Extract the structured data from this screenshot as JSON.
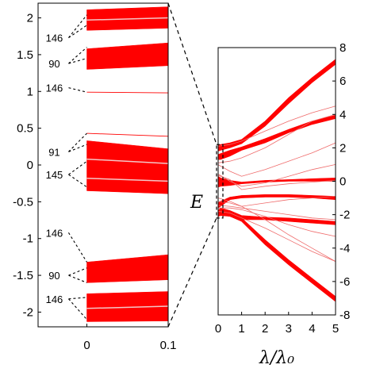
{
  "chart_data": [
    {
      "type": "line",
      "panel": "left",
      "xlim": [
        -0.06,
        0.1
      ],
      "ylim": [
        -2.2,
        2.2
      ],
      "x_ticks": [
        0,
        0.1
      ],
      "x_tick_labels": [
        "0",
        "0.1"
      ],
      "y_ticks": [
        2,
        1.5,
        1,
        0.5,
        0,
        -0.5,
        -1,
        -1.5,
        -2
      ],
      "y_tick_labels": [
        "2",
        "1.5",
        "1",
        "0.5",
        "0",
        "-0.5",
        "-1",
        "-1.5",
        "-2"
      ],
      "bands": [
        {
          "x": [
            0,
            0.1
          ],
          "ymin": [
            1.83,
            1.86
          ],
          "ymax": [
            2.11,
            2.15
          ]
        },
        {
          "x": [
            0,
            0.1
          ],
          "ymin": [
            1.3,
            1.35
          ],
          "ymax": [
            1.58,
            1.66
          ]
        },
        {
          "x": [
            0,
            0.1
          ],
          "ymin": [
            -0.35,
            -0.39
          ],
          "ymax": [
            0.33,
            0.22
          ]
        },
        {
          "x": [
            0,
            0.1
          ],
          "ymin": [
            -1.6,
            -1.56
          ],
          "ymax": [
            -1.32,
            -1.22
          ]
        },
        {
          "x": [
            0,
            0.1
          ],
          "ymin": [
            -2.13,
            -2.12
          ],
          "ymax": [
            -1.75,
            -1.72
          ]
        }
      ],
      "lines": [
        {
          "x": [
            0,
            0.1
          ],
          "y": [
            0.99,
            0.98
          ]
        },
        {
          "x": [
            0,
            0.1
          ],
          "y": [
            0.43,
            0.39
          ]
        }
      ],
      "gap_lines": [
        {
          "x": [
            0,
            0.1
          ],
          "y": [
            1.97,
            2.0
          ]
        },
        {
          "x": [
            0,
            0.1
          ],
          "y": [
            0.08,
            0.02
          ]
        },
        {
          "x": [
            0,
            0.1
          ],
          "y": [
            -0.18,
            -0.22
          ]
        },
        {
          "x": [
            0,
            0.1
          ],
          "y": [
            -1.95,
            -1.92
          ]
        }
      ],
      "annotations": [
        {
          "text": "146",
          "x": -0.042,
          "y": 1.73,
          "targets": [
            [
              0,
              2.04
            ],
            [
              0,
              1.9
            ]
          ]
        },
        {
          "text": "90",
          "x": -0.042,
          "y": 1.38,
          "targets": [
            [
              0,
              1.6
            ],
            [
              0,
              1.45
            ]
          ]
        },
        {
          "text": "146",
          "x": -0.042,
          "y": 1.05,
          "targets": [
            [
              0,
              0.99
            ]
          ]
        },
        {
          "text": "91",
          "x": -0.042,
          "y": 0.18,
          "targets": [
            [
              0,
              0.43
            ],
            [
              0,
              0.28
            ]
          ]
        },
        {
          "text": "145",
          "x": -0.042,
          "y": -0.13,
          "targets": [
            [
              0,
              0.05
            ],
            [
              0,
              -0.3
            ]
          ]
        },
        {
          "text": "146",
          "x": -0.042,
          "y": -0.92,
          "targets": [
            [
              0,
              -1.32
            ]
          ]
        },
        {
          "text": "90",
          "x": -0.042,
          "y": -1.5,
          "targets": [
            [
              0,
              -1.4
            ],
            [
              0,
              -1.6
            ]
          ]
        },
        {
          "text": "146",
          "x": -0.042,
          "y": -1.82,
          "targets": [
            [
              0,
              -1.8
            ],
            [
              0,
              -2.1
            ]
          ]
        }
      ]
    },
    {
      "type": "line",
      "panel": "right",
      "xlabel": "λ/λ₀",
      "ylabel": "E",
      "xlim": [
        0,
        5
      ],
      "ylim": [
        -8,
        8
      ],
      "x_ticks": [
        0,
        1,
        2,
        3,
        4,
        5
      ],
      "x_tick_labels": [
        "0",
        "1",
        "2",
        "3",
        "4",
        "5"
      ],
      "y_ticks": [
        8,
        6,
        4,
        2,
        0,
        -2,
        -4,
        -6,
        -8
      ],
      "y_tick_labels": [
        "8",
        "6",
        "4",
        "2",
        "0",
        "-2",
        "-4",
        "-6",
        "-8"
      ],
      "inset_box": {
        "x": [
          0,
          0.1
        ],
        "y": [
          -2.2,
          2.2
        ]
      },
      "fan_bands": [
        {
          "x": [
            0,
            0.1,
            0.5,
            1,
            2,
            3,
            4,
            5
          ],
          "ymin": [
            1.8,
            1.85,
            2.0,
            2.25,
            3.3,
            4.65,
            5.9,
            7.0
          ],
          "ymax": [
            2.15,
            2.2,
            2.3,
            2.5,
            3.6,
            5.0,
            6.2,
            7.3
          ]
        },
        {
          "x": [
            0,
            0.1,
            0.5,
            1,
            2,
            3,
            4,
            5
          ],
          "ymin": [
            1.3,
            1.3,
            1.5,
            1.85,
            2.3,
            2.9,
            3.4,
            3.75
          ],
          "ymax": [
            1.6,
            1.65,
            1.85,
            2.05,
            2.55,
            3.1,
            3.6,
            3.95
          ]
        },
        {
          "x": [
            0,
            0.1,
            0.5,
            1,
            2,
            3,
            4,
            5
          ],
          "ymin": [
            -0.35,
            -0.3,
            -0.25,
            -0.15,
            -0.05,
            0.0,
            0.0,
            0.0
          ],
          "ymax": [
            0.3,
            0.2,
            0.05,
            -0.05,
            0.05,
            0.1,
            0.15,
            0.2
          ]
        },
        {
          "x": [
            0,
            0.1,
            0.5,
            1,
            2,
            3,
            4,
            5
          ],
          "ymin": [
            -1.6,
            -1.5,
            -1.1,
            -1.0,
            -0.95,
            -0.95,
            -1.0,
            -1.1
          ],
          "ymax": [
            -1.3,
            -1.2,
            -0.95,
            -0.85,
            -0.8,
            -0.8,
            -0.85,
            -0.9
          ]
        },
        {
          "x": [
            0,
            0.1,
            0.5,
            1,
            2,
            3,
            4,
            5
          ],
          "ymin": [
            -2.13,
            -2.0,
            -2.1,
            -2.3,
            -2.3,
            -2.4,
            -2.5,
            -2.6
          ],
          "ymax": [
            -1.75,
            -1.6,
            -1.75,
            -2.05,
            -2.15,
            -2.2,
            -2.3,
            -2.4
          ]
        },
        {
          "x": [
            0,
            0.1,
            0.5,
            1,
            2,
            3,
            4,
            5
          ],
          "ymin": [
            -2.1,
            -2.05,
            -2.1,
            -2.4,
            -3.8,
            -5.0,
            -6.1,
            -7.2
          ],
          "ymax": [
            -1.9,
            -1.95,
            -1.95,
            -2.2,
            -3.5,
            -4.7,
            -5.8,
            -6.9
          ]
        }
      ],
      "thin_lines": [
        {
          "x": [
            0,
            0.5,
            1,
            2,
            3,
            4,
            5
          ],
          "y": [
            2.1,
            2.2,
            2.4,
            3.0,
            3.6,
            4.1,
            4.5
          ]
        },
        {
          "x": [
            0,
            0.5,
            1,
            2,
            3,
            4,
            5
          ],
          "y": [
            1.1,
            1.2,
            1.4,
            2.0,
            2.8,
            3.6,
            4.0
          ]
        },
        {
          "x": [
            0,
            0.5,
            1,
            2,
            3,
            4,
            5
          ],
          "y": [
            0.99,
            0.6,
            0.3,
            0.7,
            1.2,
            1.7,
            2.3
          ]
        },
        {
          "x": [
            0,
            0.5,
            1,
            2,
            3,
            4,
            5
          ],
          "y": [
            0.43,
            0.0,
            -0.3,
            -0.1,
            0.3,
            0.7,
            1.0
          ]
        },
        {
          "x": [
            0,
            0.5,
            1,
            2,
            3,
            4,
            5
          ],
          "y": [
            0.35,
            0.1,
            -0.5,
            -0.3,
            -0.15,
            -0.05,
            0.05
          ]
        },
        {
          "x": [
            0,
            0.5,
            1,
            2,
            3,
            4,
            5
          ],
          "y": [
            -1.0,
            -1.2,
            -1.5,
            -1.3,
            -1.1,
            -1.0,
            -0.9
          ]
        },
        {
          "x": [
            0,
            0.5,
            1,
            2,
            3,
            4,
            5
          ],
          "y": [
            -1.45,
            -1.5,
            -1.6,
            -1.8,
            -2.0,
            -2.2,
            -2.3
          ]
        },
        {
          "x": [
            0,
            0.5,
            1,
            2,
            3,
            4,
            5
          ],
          "y": [
            -1.6,
            -1.6,
            -1.7,
            -2.1,
            -2.6,
            -3.0,
            -3.3
          ]
        },
        {
          "x": [
            0,
            0.5,
            1,
            2,
            3,
            4,
            5
          ],
          "y": [
            -1.2,
            -1.3,
            -1.5,
            -2.3,
            -3.2,
            -4.0,
            -4.8
          ]
        },
        {
          "x": [
            0,
            0.5,
            1,
            2,
            3,
            4,
            5
          ],
          "y": [
            -1.8,
            -1.9,
            -2.2,
            -2.8,
            -3.5,
            -4.2,
            -4.8
          ]
        }
      ],
      "color": "#ff0000"
    }
  ]
}
